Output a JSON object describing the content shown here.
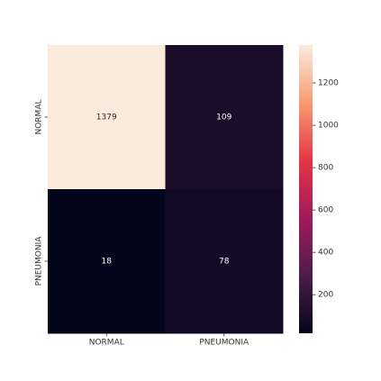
{
  "chart_data": {
    "type": "heatmap",
    "x_categories": [
      "NORMAL",
      "PNEUMONIA"
    ],
    "y_categories": [
      "NORMAL",
      "PNEUMONIA"
    ],
    "values": [
      [
        1379,
        109
      ],
      [
        18,
        78
      ]
    ],
    "colormap": "rocket",
    "vlim": [
      18,
      1379
    ],
    "colorbar_ticks": [
      200,
      400,
      600,
      800,
      1000,
      1200
    ]
  }
}
